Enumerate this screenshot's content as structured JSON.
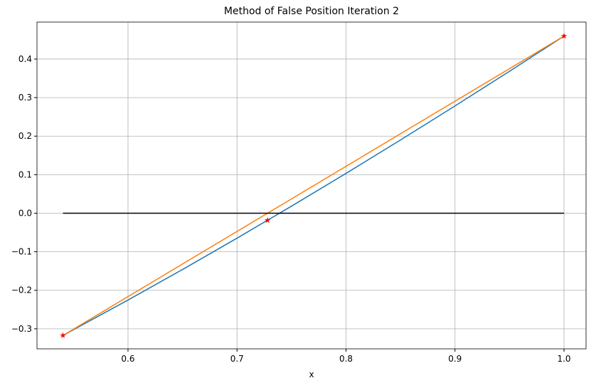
{
  "chart_data": {
    "type": "line",
    "title": "Method of False Position Iteration 2",
    "x_label": "x",
    "xlim": [
      0.5165,
      1.0202
    ],
    "ylim": [
      -0.352,
      0.496
    ],
    "xticks": [
      0.6,
      0.7,
      0.8,
      0.9,
      {
        "value": 1.0,
        "label": "1.0"
      }
    ],
    "yticks": [
      {
        "value": -0.3,
        "label": "−0.3"
      },
      {
        "value": -0.2,
        "label": "−0.2"
      },
      {
        "value": -0.1,
        "label": "−0.1"
      },
      {
        "value": 0,
        "label": "0.0"
      },
      0.1,
      0.2,
      0.3,
      0.4
    ],
    "grid": true,
    "series": [
      {
        "color": "#1f77b4",
        "style": "line",
        "x": [
          0.5403,
          0.6,
          0.65,
          0.7,
          0.75,
          0.8,
          0.85,
          0.9,
          0.95,
          1.0
        ],
        "values": [
          -0.3173,
          -0.2253,
          -0.1461,
          -0.0648,
          0.0183,
          0.1033,
          0.19,
          0.2784,
          0.3683,
          0.4597
        ]
      },
      {
        "color": "#ff7f0e",
        "style": "line",
        "x": [
          0.5403,
          1.0
        ],
        "values": [
          -0.3173,
          0.4597
        ]
      },
      {
        "color": "#000000",
        "style": "line",
        "x": [
          0.5403,
          1.0
        ],
        "values": [
          0,
          0
        ]
      },
      {
        "color": "#ff0000",
        "style": "star",
        "x": [
          0.5403,
          0.728,
          1.0
        ],
        "values": [
          -0.3173,
          -0.0185,
          0.4597
        ]
      }
    ]
  }
}
